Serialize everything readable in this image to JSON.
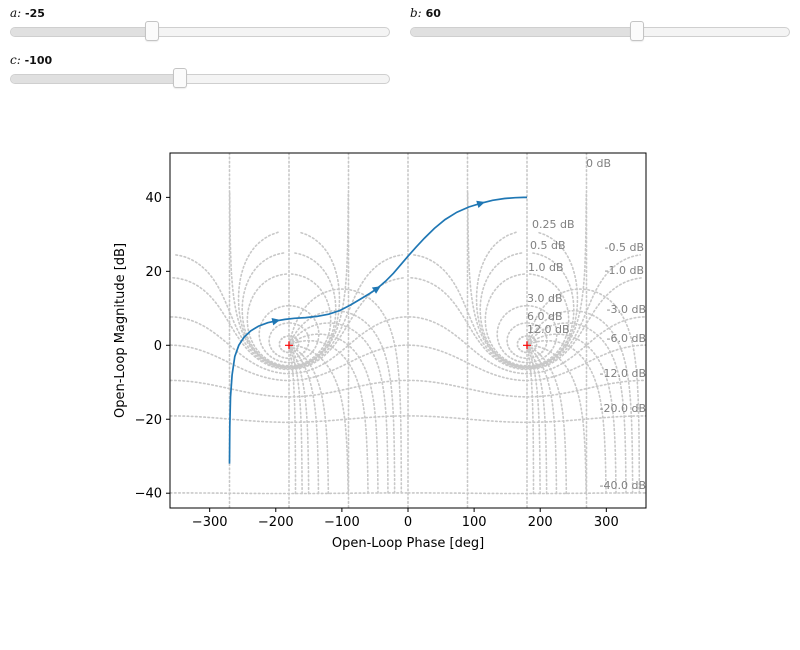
{
  "sliders": [
    {
      "name": "a",
      "label": "a:",
      "value_text": "-25",
      "fraction": 0.375
    },
    {
      "name": "b",
      "label": "b:",
      "value_text": "60",
      "fraction": 0.6
    },
    {
      "name": "c",
      "label": "c:",
      "value_text": "-100",
      "fraction": 0.45
    }
  ],
  "chart_data": {
    "type": "line",
    "subtype": "nichols",
    "xlabel": "Open-Loop Phase [deg]",
    "ylabel": "Open-Loop Magnitude [dB]",
    "xlim": [
      -360,
      360
    ],
    "ylim": [
      -44,
      52
    ],
    "xticks": [
      -300,
      -200,
      -100,
      0,
      100,
      200,
      300
    ],
    "yticks": [
      -40,
      -20,
      0,
      20,
      40
    ],
    "grid": "nichols-chart-dotted",
    "series": [
      {
        "x": [
          -270,
          -269.5,
          -268.5,
          -266,
          -262,
          -256,
          -248,
          -238,
          -226,
          -212,
          -200,
          -186,
          -172,
          -155,
          -138,
          -120,
          -103,
          -87,
          -72,
          -58,
          -47,
          -34,
          -22,
          -10,
          0,
          12,
          25,
          40,
          56,
          74,
          92,
          110,
          128,
          146,
          162,
          175,
          180
        ],
        "y": [
          -32,
          -22,
          -14,
          -8,
          -3,
          0,
          2.2,
          3.9,
          5.2,
          6.1,
          6.6,
          7.0,
          7.3,
          7.5,
          7.8,
          8.4,
          9.4,
          10.9,
          12.5,
          14.0,
          15.3,
          17.3,
          19.5,
          22.0,
          24.1,
          26.5,
          29.0,
          31.6,
          34.0,
          36.0,
          37.4,
          38.4,
          39.2,
          39.7,
          39.9,
          40.0,
          40.0
        ]
      }
    ],
    "arrows_at_x": [
      -200,
      -47,
      110
    ],
    "critical_points": [
      [
        -180,
        0
      ],
      [
        180,
        0
      ]
    ],
    "contour_labels": [
      "0 dB",
      "0.25 dB",
      "0.5 dB",
      "1.0 dB",
      "3.0 dB",
      "6.0 dB",
      "12.0 dB",
      "-0.5 dB",
      "-1.0 dB",
      "-3.0 dB",
      "-6.0 dB",
      "-12.0 dB",
      "-20.0 dB",
      "-40.0 dB"
    ],
    "colors": {
      "line": "#1f77b4",
      "grid": "#c8c8c8",
      "critical": "#ff0000",
      "contour_label": "#808080"
    }
  }
}
